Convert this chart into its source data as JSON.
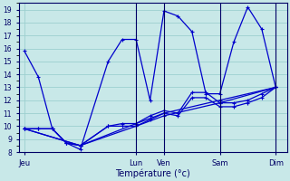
{
  "xlabel": "Température (°c)",
  "background_color": "#c8e8e8",
  "grid_color": "#9ccfcf",
  "line_color": "#0000cc",
  "spine_color": "#000066",
  "ylim": [
    8,
    19.5
  ],
  "yticks": [
    8,
    9,
    10,
    11,
    12,
    13,
    14,
    15,
    16,
    17,
    18,
    19
  ],
  "day_labels": [
    "Jeu",
    "Lun",
    "Ven",
    "Sam",
    "Dim"
  ],
  "day_x": [
    0,
    40,
    50,
    70,
    90
  ],
  "xlim": [
    -2,
    94
  ],
  "line1_x": [
    0,
    5,
    10,
    15,
    20,
    30,
    35,
    40,
    45,
    50,
    55,
    60,
    65,
    70,
    75,
    80,
    85,
    90
  ],
  "line1_y": [
    15.8,
    13.8,
    9.8,
    8.7,
    8.2,
    15.0,
    16.7,
    16.7,
    12.0,
    18.9,
    18.5,
    17.3,
    12.5,
    12.5,
    16.5,
    19.2,
    17.5,
    13.0
  ],
  "line2_x": [
    0,
    5,
    10,
    15,
    20,
    30,
    35,
    40,
    45,
    50,
    55,
    60,
    65,
    70,
    75,
    80,
    85,
    90
  ],
  "line2_y": [
    9.8,
    9.8,
    9.8,
    8.7,
    8.5,
    10.0,
    10.2,
    10.2,
    10.8,
    11.2,
    11.0,
    12.6,
    12.6,
    11.8,
    11.8,
    12.0,
    12.5,
    13.0
  ],
  "line3_x": [
    0,
    5,
    10,
    15,
    20,
    30,
    35,
    40,
    45,
    50,
    55,
    60,
    65,
    70,
    75,
    80,
    85,
    90
  ],
  "line3_y": [
    9.8,
    9.8,
    9.8,
    8.7,
    8.5,
    10.0,
    10.0,
    10.0,
    10.5,
    11.0,
    10.8,
    12.2,
    12.2,
    11.5,
    11.5,
    11.8,
    12.2,
    13.0
  ],
  "line4_x": [
    0,
    20,
    40,
    50,
    70,
    90
  ],
  "line4_y": [
    9.8,
    8.5,
    10.2,
    11.0,
    12.0,
    13.0
  ],
  "line5_x": [
    0,
    20,
    40,
    50,
    70,
    90
  ],
  "line5_y": [
    9.8,
    8.5,
    10.0,
    10.8,
    11.8,
    13.0
  ]
}
